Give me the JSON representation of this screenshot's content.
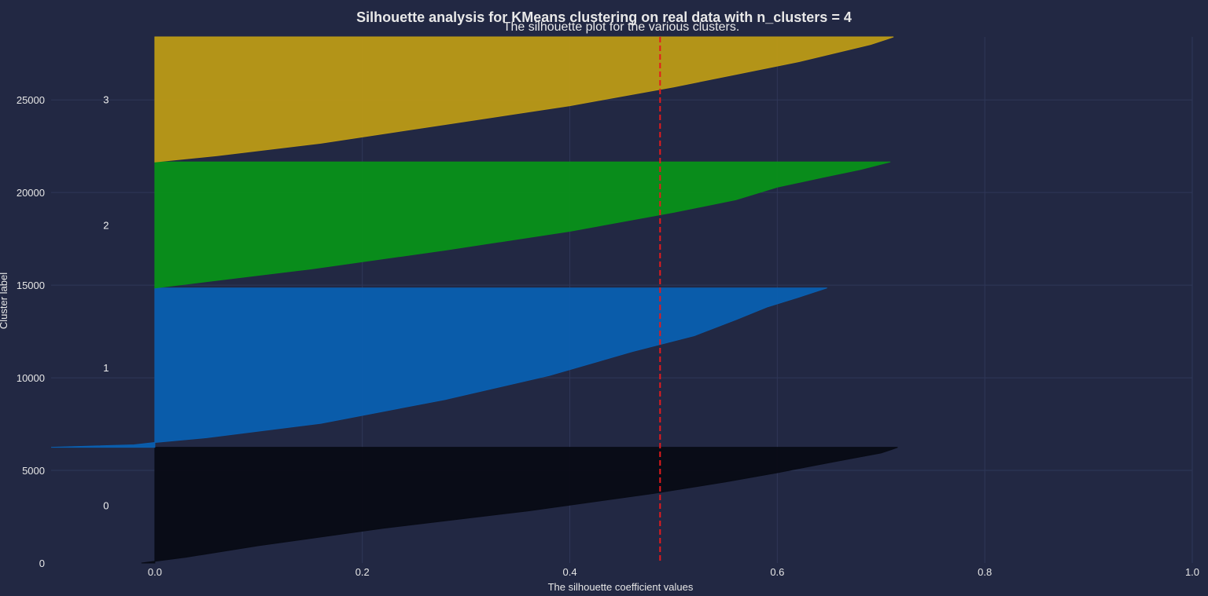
{
  "chart_data": {
    "type": "area",
    "title": "Silhouette analysis for KMeans clustering on real data with n_clusters = 4",
    "subtitle": "The silhouette plot for the various clusters.",
    "xlabel": "The silhouette coefficient values",
    "ylabel": "Cluster label",
    "xlim": [
      -0.1,
      1.0
    ],
    "ylim": [
      0,
      28400
    ],
    "x_ticks": [
      "0.0",
      "0.2",
      "0.4",
      "0.6",
      "0.8",
      "1.0"
    ],
    "y_ticks": [
      "0",
      "5000",
      "10000",
      "15000",
      "20000",
      "25000"
    ],
    "grid": true,
    "average_silhouette_score": 0.487,
    "clusters": [
      {
        "label": "0",
        "color": "#080b15",
        "y_range": [
          0,
          6250
        ],
        "profile": [
          [
            0,
            -0.013
          ],
          [
            0.05,
            0.03
          ],
          [
            0.15,
            0.1
          ],
          [
            0.3,
            0.22
          ],
          [
            0.45,
            0.36
          ],
          [
            0.6,
            0.48
          ],
          [
            0.7,
            0.55
          ],
          [
            0.78,
            0.6
          ],
          [
            0.85,
            0.64
          ],
          [
            0.9,
            0.67
          ],
          [
            0.95,
            0.7
          ],
          [
            0.98,
            0.71
          ],
          [
            1.0,
            0.716
          ]
        ]
      },
      {
        "label": "1",
        "color": "#0a5fb0",
        "y_range": [
          6250,
          14850
        ],
        "profile": [
          [
            0,
            -0.1
          ],
          [
            0.015,
            -0.02
          ],
          [
            0.03,
            0.0
          ],
          [
            0.06,
            0.05
          ],
          [
            0.15,
            0.16
          ],
          [
            0.3,
            0.28
          ],
          [
            0.45,
            0.38
          ],
          [
            0.6,
            0.46
          ],
          [
            0.7,
            0.52
          ],
          [
            0.8,
            0.56
          ],
          [
            0.88,
            0.59
          ],
          [
            0.94,
            0.62
          ],
          [
            1.0,
            0.648
          ]
        ]
      },
      {
        "label": "2",
        "color": "#089119",
        "y_range": [
          14850,
          21650
        ],
        "profile": [
          [
            0,
            0.0
          ],
          [
            0.05,
            0.05
          ],
          [
            0.15,
            0.15
          ],
          [
            0.3,
            0.28
          ],
          [
            0.45,
            0.4
          ],
          [
            0.6,
            0.5
          ],
          [
            0.7,
            0.56
          ],
          [
            0.8,
            0.6
          ],
          [
            0.88,
            0.645
          ],
          [
            0.94,
            0.68
          ],
          [
            1.0,
            0.709
          ]
        ]
      },
      {
        "label": "3",
        "color": "#bc9a16",
        "y_range": [
          21650,
          28400
        ],
        "profile": [
          [
            0,
            0.0
          ],
          [
            0.05,
            0.06
          ],
          [
            0.15,
            0.16
          ],
          [
            0.3,
            0.28
          ],
          [
            0.45,
            0.4
          ],
          [
            0.6,
            0.5
          ],
          [
            0.7,
            0.56
          ],
          [
            0.8,
            0.62
          ],
          [
            0.88,
            0.66
          ],
          [
            0.94,
            0.69
          ],
          [
            0.98,
            0.705
          ],
          [
            1.0,
            0.712
          ]
        ]
      }
    ]
  }
}
